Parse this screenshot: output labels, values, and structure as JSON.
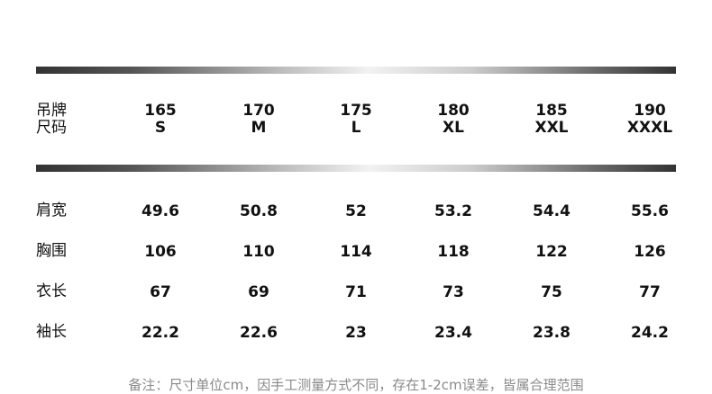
{
  "header": {
    "label_line1": "吊牌",
    "label_line2": "尺码",
    "columns": [
      {
        "height": "165",
        "size": "S"
      },
      {
        "height": "170",
        "size": "M"
      },
      {
        "height": "175",
        "size": "L"
      },
      {
        "height": "180",
        "size": "XL"
      },
      {
        "height": "185",
        "size": "XXL"
      },
      {
        "height": "190",
        "size": "XXXL"
      }
    ]
  },
  "rows": [
    {
      "label": "肩宽",
      "values": [
        "49.6",
        "50.8",
        "52",
        "53.2",
        "54.4",
        "55.6"
      ]
    },
    {
      "label": "胸围",
      "values": [
        "106",
        "110",
        "114",
        "118",
        "122",
        "126"
      ]
    },
    {
      "label": "衣长",
      "values": [
        "67",
        "69",
        "71",
        "73",
        "75",
        "77"
      ]
    },
    {
      "label": "袖长",
      "values": [
        "22.2",
        "22.6",
        "23",
        "23.4",
        "23.8",
        "24.2"
      ]
    }
  ],
  "note": "备注：尺寸单位cm，因手工测量方式不同，存在1-2cm误差，皆属合理范围"
}
